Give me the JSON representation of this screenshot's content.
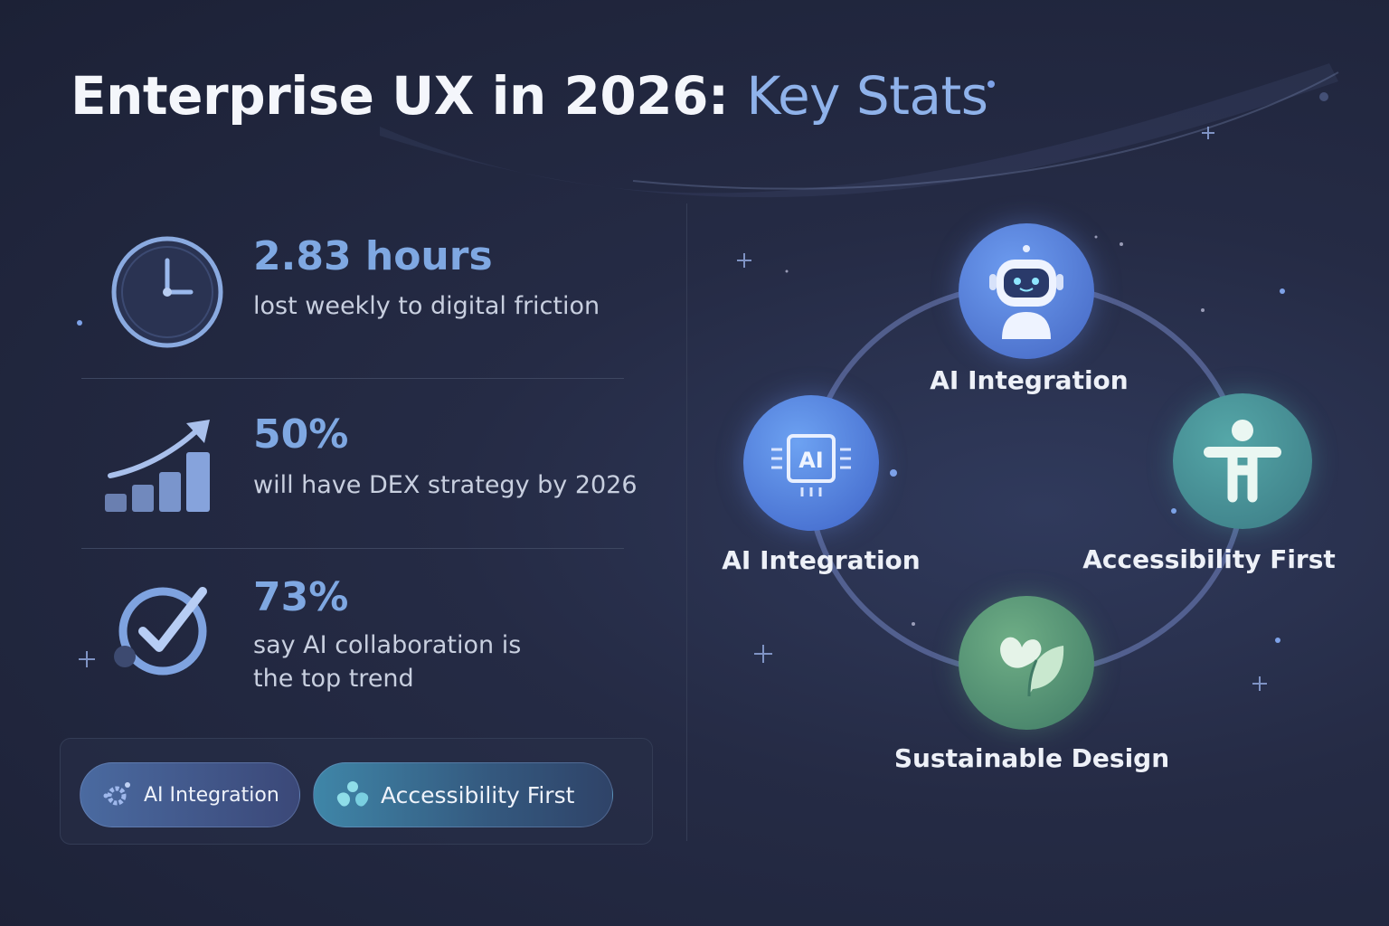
{
  "title": {
    "main": "Enterprise UX in 2026:",
    "highlight": "Key Stats"
  },
  "stats": [
    {
      "icon": "clock-icon",
      "value": "2.83 hours",
      "label": "lost weekly to digital friction"
    },
    {
      "icon": "growth-chart-icon",
      "value": "50%",
      "label": "will have DEX strategy by 2026"
    },
    {
      "icon": "checkmark-icon",
      "value": "73%",
      "label_lines": [
        "say AI collaboration is",
        "the top trend"
      ]
    }
  ],
  "chips": [
    {
      "icon": "gear-icon",
      "label": "AI Integration"
    },
    {
      "icon": "accessibility-icon",
      "label": "Accessibility First"
    }
  ],
  "cycle": [
    {
      "icon": "robot-icon",
      "label": "AI Integration"
    },
    {
      "icon": "ai-chip-icon",
      "label": "AI Integration",
      "chip_text": "AI"
    },
    {
      "icon": "accessibility-person-icon",
      "label": "Accessibility First"
    },
    {
      "icon": "leaf-icon",
      "label": "Sustainable Design"
    }
  ],
  "colors": {
    "accent": "#7fa8e2",
    "background": "#1f2439",
    "teal": "#4fa3a8",
    "green": "#5a9a78"
  }
}
